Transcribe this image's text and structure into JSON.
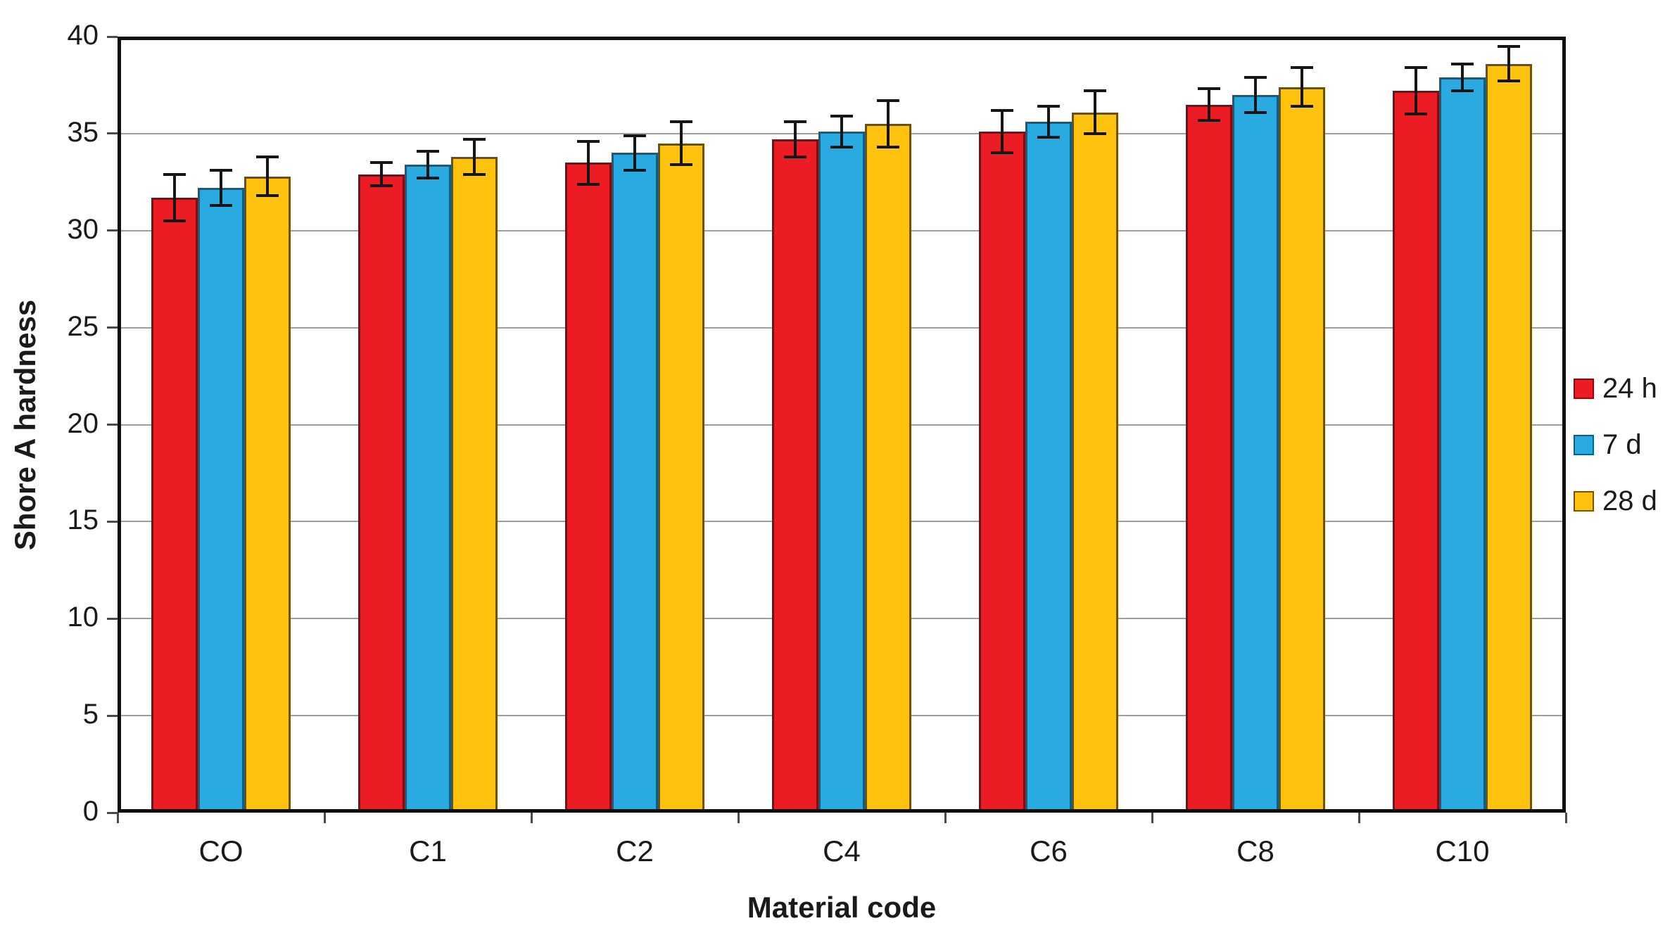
{
  "chart_data": {
    "type": "bar",
    "title": "",
    "xlabel": "Material code",
    "ylabel": "Shore A hardness",
    "categories": [
      "CO",
      "C1",
      "C2",
      "C4",
      "C6",
      "C8",
      "C10"
    ],
    "series": [
      {
        "name": "24 h",
        "color": "#EC1C24",
        "border_color": "#7a1013",
        "values": [
          31.7,
          32.9,
          33.5,
          34.7,
          35.1,
          36.5,
          37.2
        ],
        "errors": [
          1.2,
          0.6,
          1.1,
          0.9,
          1.1,
          0.8,
          1.2
        ]
      },
      {
        "name": "7 d",
        "color": "#29ABE2",
        "border_color": "#135e80",
        "values": [
          32.2,
          33.4,
          34.0,
          35.1,
          35.6,
          37.0,
          37.9
        ],
        "errors": [
          0.9,
          0.7,
          0.9,
          0.8,
          0.8,
          0.9,
          0.7
        ]
      },
      {
        "name": "28 d",
        "color": "#FFC20E",
        "border_color": "#6e5200",
        "values": [
          32.8,
          33.8,
          34.5,
          35.5,
          36.1,
          37.4,
          38.6
        ],
        "errors": [
          1.0,
          0.9,
          1.1,
          1.2,
          1.1,
          1.0,
          0.9
        ]
      }
    ],
    "ylim": [
      0,
      40
    ],
    "ytick_step": 5,
    "yticks": [
      "0",
      "5",
      "10",
      "15",
      "20",
      "25",
      "30",
      "35",
      "40"
    ],
    "grid": true,
    "grid_color": "#9e9e9e",
    "error_bar_color": "#161616",
    "legend_position": "right-outside"
  }
}
